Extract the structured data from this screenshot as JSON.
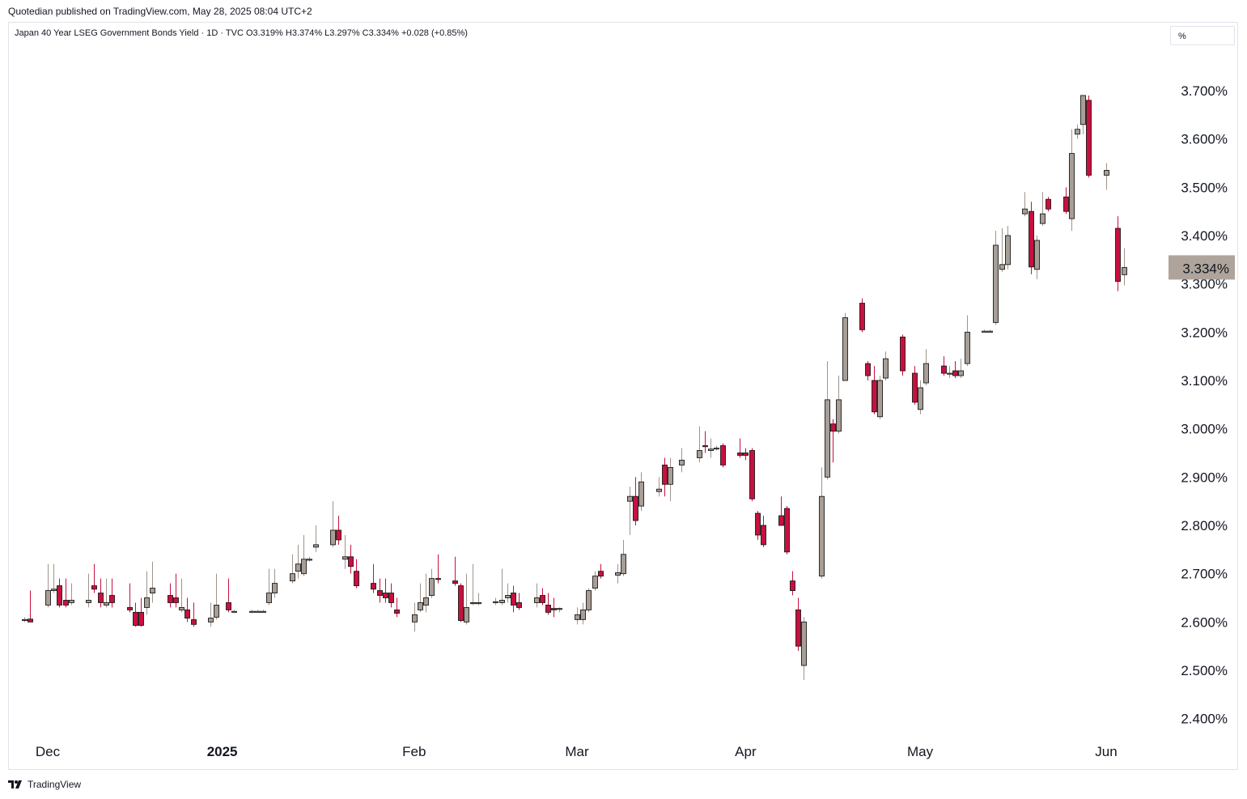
{
  "publish_line": "Quotedian published on TradingView.com, May 28, 2025 08:04 UTC+2",
  "legend_text": "Japan 40 Year LSEG Government Bonds Yield · 1D · TVC  O3.319%  H3.374%  L3.297%  C3.334%  +0.028 (+0.85%)",
  "scale_mode_label": "%",
  "footer": {
    "brand": "TradingView",
    "logo_icon": "tradingview-logo-icon"
  },
  "colors": {
    "up": "#a89e96",
    "down": "#c8103f",
    "wick_up": "#9e948c",
    "wick_down": "#c8103f",
    "price_tag": "#aea49b"
  },
  "chart_data": {
    "type": "candlestick",
    "title": "Japan 40 Year LSEG Government Bonds Yield",
    "interval": "1D",
    "source": "TVC",
    "ohlc_label": {
      "open": "3.319%",
      "high": "3.374%",
      "low": "3.297%",
      "close": "3.334%",
      "change": "+0.028 (+0.85%)"
    },
    "last_price_label": "3.334%",
    "last_price": 3.334,
    "ylim": [
      2.36,
      3.78
    ],
    "y_ticks": [
      2.4,
      2.5,
      2.6,
      2.7,
      2.8,
      2.9,
      3.0,
      3.1,
      3.2,
      3.3,
      3.4,
      3.5,
      3.6,
      3.7
    ],
    "y_tick_labels": [
      "2.400%",
      "2.500%",
      "2.600%",
      "2.700%",
      "2.800%",
      "2.900%",
      "3.000%",
      "3.100%",
      "3.200%",
      "3.300%",
      "3.400%",
      "3.500%",
      "3.600%",
      "3.700%"
    ],
    "x_tick_labels": [
      {
        "label": "Dec",
        "date": "2024-12-02",
        "bold": false
      },
      {
        "label": "2025",
        "date": "2025-01-01",
        "bold": true
      },
      {
        "label": "Feb",
        "date": "2025-02-03",
        "bold": false
      },
      {
        "label": "Mar",
        "date": "2025-03-03",
        "bold": false
      },
      {
        "label": "Apr",
        "date": "2025-04-01",
        "bold": false
      },
      {
        "label": "May",
        "date": "2025-05-01",
        "bold": false
      },
      {
        "label": "Jun",
        "date": "2025-06-02",
        "bold": false
      }
    ],
    "candles": [
      {
        "d": "2024-11-28",
        "o": 2.605,
        "h": 2.61,
        "l": 2.6,
        "c": 2.605
      },
      {
        "d": "2024-11-29",
        "o": 2.606,
        "h": 2.665,
        "l": 2.6,
        "c": 2.6
      },
      {
        "d": "2024-12-02",
        "o": 2.635,
        "h": 2.72,
        "l": 2.63,
        "c": 2.665
      },
      {
        "d": "2024-12-03",
        "o": 2.665,
        "h": 2.72,
        "l": 2.66,
        "c": 2.668
      },
      {
        "d": "2024-12-04",
        "o": 2.675,
        "h": 2.69,
        "l": 2.63,
        "c": 2.635
      },
      {
        "d": "2024-12-05",
        "o": 2.645,
        "h": 2.69,
        "l": 2.63,
        "c": 2.635
      },
      {
        "d": "2024-12-06",
        "o": 2.64,
        "h": 2.68,
        "l": 2.635,
        "c": 2.645
      },
      {
        "d": "2024-12-09",
        "o": 2.64,
        "h": 2.7,
        "l": 2.63,
        "c": 2.645
      },
      {
        "d": "2024-12-10",
        "o": 2.675,
        "h": 2.72,
        "l": 2.66,
        "c": 2.668
      },
      {
        "d": "2024-12-11",
        "o": 2.66,
        "h": 2.69,
        "l": 2.63,
        "c": 2.64
      },
      {
        "d": "2024-12-12",
        "o": 2.635,
        "h": 2.69,
        "l": 2.63,
        "c": 2.64
      },
      {
        "d": "2024-12-13",
        "o": 2.655,
        "h": 2.69,
        "l": 2.63,
        "c": 2.64
      },
      {
        "d": "2024-12-16",
        "o": 2.63,
        "h": 2.68,
        "l": 2.62,
        "c": 2.625
      },
      {
        "d": "2024-12-17",
        "o": 2.62,
        "h": 2.64,
        "l": 2.59,
        "c": 2.593
      },
      {
        "d": "2024-12-18",
        "o": 2.62,
        "h": 2.65,
        "l": 2.59,
        "c": 2.593
      },
      {
        "d": "2024-12-19",
        "o": 2.63,
        "h": 2.705,
        "l": 2.615,
        "c": 2.65
      },
      {
        "d": "2024-12-20",
        "o": 2.66,
        "h": 2.725,
        "l": 2.64,
        "c": 2.67
      },
      {
        "d": "2024-12-23",
        "o": 2.655,
        "h": 2.68,
        "l": 2.63,
        "c": 2.64
      },
      {
        "d": "2024-12-24",
        "o": 2.65,
        "h": 2.7,
        "l": 2.63,
        "c": 2.64
      },
      {
        "d": "2024-12-25",
        "o": 2.625,
        "h": 2.69,
        "l": 2.62,
        "c": 2.63
      },
      {
        "d": "2024-12-26",
        "o": 2.625,
        "h": 2.65,
        "l": 2.6,
        "c": 2.608
      },
      {
        "d": "2024-12-27",
        "o": 2.605,
        "h": 2.64,
        "l": 2.59,
        "c": 2.595
      },
      {
        "d": "2024-12-30",
        "o": 2.6,
        "h": 2.64,
        "l": 2.59,
        "c": 2.608
      },
      {
        "d": "2024-12-31",
        "o": 2.61,
        "h": 2.7,
        "l": 2.605,
        "c": 2.635
      },
      {
        "d": "2025-01-02",
        "o": 2.64,
        "h": 2.69,
        "l": 2.62,
        "c": 2.625
      },
      {
        "d": "2025-01-03",
        "o": 2.622,
        "h": 2.625,
        "l": 2.62,
        "c": 2.622
      },
      {
        "d": "2025-01-06",
        "o": 2.622,
        "h": 2.625,
        "l": 2.62,
        "c": 2.622
      },
      {
        "d": "2025-01-07",
        "o": 2.622,
        "h": 2.625,
        "l": 2.62,
        "c": 2.622
      },
      {
        "d": "2025-01-08",
        "o": 2.622,
        "h": 2.625,
        "l": 2.62,
        "c": 2.622
      },
      {
        "d": "2025-01-09",
        "o": 2.64,
        "h": 2.71,
        "l": 2.635,
        "c": 2.66
      },
      {
        "d": "2025-01-10",
        "o": 2.66,
        "h": 2.71,
        "l": 2.65,
        "c": 2.68
      },
      {
        "d": "2025-01-13",
        "o": 2.685,
        "h": 2.74,
        "l": 2.68,
        "c": 2.7
      },
      {
        "d": "2025-01-14",
        "o": 2.705,
        "h": 2.76,
        "l": 2.69,
        "c": 2.72
      },
      {
        "d": "2025-01-15",
        "o": 2.7,
        "h": 2.78,
        "l": 2.695,
        "c": 2.73
      },
      {
        "d": "2025-01-16",
        "o": 2.73,
        "h": 2.735,
        "l": 2.725,
        "c": 2.73
      },
      {
        "d": "2025-01-17",
        "o": 2.755,
        "h": 2.8,
        "l": 2.745,
        "c": 2.76
      },
      {
        "d": "2025-01-20",
        "o": 2.76,
        "h": 2.85,
        "l": 2.755,
        "c": 2.79
      },
      {
        "d": "2025-01-21",
        "o": 2.79,
        "h": 2.82,
        "l": 2.76,
        "c": 2.77
      },
      {
        "d": "2025-01-22",
        "o": 2.73,
        "h": 2.78,
        "l": 2.71,
        "c": 2.735
      },
      {
        "d": "2025-01-23",
        "o": 2.735,
        "h": 2.76,
        "l": 2.7,
        "c": 2.715
      },
      {
        "d": "2025-01-24",
        "o": 2.705,
        "h": 2.73,
        "l": 2.67,
        "c": 2.675
      },
      {
        "d": "2025-01-27",
        "o": 2.68,
        "h": 2.72,
        "l": 2.66,
        "c": 2.668
      },
      {
        "d": "2025-01-28",
        "o": 2.665,
        "h": 2.69,
        "l": 2.64,
        "c": 2.655
      },
      {
        "d": "2025-01-29",
        "o": 2.66,
        "h": 2.69,
        "l": 2.64,
        "c": 2.65
      },
      {
        "d": "2025-01-30",
        "o": 2.66,
        "h": 2.68,
        "l": 2.63,
        "c": 2.64
      },
      {
        "d": "2025-01-31",
        "o": 2.625,
        "h": 2.65,
        "l": 2.61,
        "c": 2.618
      },
      {
        "d": "2025-02-03",
        "o": 2.6,
        "h": 2.64,
        "l": 2.58,
        "c": 2.615
      },
      {
        "d": "2025-02-04",
        "o": 2.625,
        "h": 2.68,
        "l": 2.62,
        "c": 2.64
      },
      {
        "d": "2025-02-05",
        "o": 2.635,
        "h": 2.7,
        "l": 2.62,
        "c": 2.65
      },
      {
        "d": "2025-02-06",
        "o": 2.655,
        "h": 2.71,
        "l": 2.65,
        "c": 2.69
      },
      {
        "d": "2025-02-07",
        "o": 2.69,
        "h": 2.74,
        "l": 2.68,
        "c": 2.688
      },
      {
        "d": "2025-02-10",
        "o": 2.685,
        "h": 2.735,
        "l": 2.675,
        "c": 2.68
      },
      {
        "d": "2025-02-11",
        "o": 2.675,
        "h": 2.68,
        "l": 2.6,
        "c": 2.603
      },
      {
        "d": "2025-02-12",
        "o": 2.6,
        "h": 2.7,
        "l": 2.595,
        "c": 2.63
      },
      {
        "d": "2025-02-13",
        "o": 2.64,
        "h": 2.72,
        "l": 2.635,
        "c": 2.64
      },
      {
        "d": "2025-02-14",
        "o": 2.64,
        "h": 2.66,
        "l": 2.635,
        "c": 2.64
      },
      {
        "d": "2025-02-17",
        "o": 2.642,
        "h": 2.65,
        "l": 2.635,
        "c": 2.642
      },
      {
        "d": "2025-02-18",
        "o": 2.64,
        "h": 2.71,
        "l": 2.635,
        "c": 2.645
      },
      {
        "d": "2025-02-19",
        "o": 2.65,
        "h": 2.68,
        "l": 2.64,
        "c": 2.655
      },
      {
        "d": "2025-02-20",
        "o": 2.66,
        "h": 2.675,
        "l": 2.62,
        "c": 2.635
      },
      {
        "d": "2025-02-21",
        "o": 2.64,
        "h": 2.66,
        "l": 2.625,
        "c": 2.63
      },
      {
        "d": "2025-02-24",
        "o": 2.64,
        "h": 2.68,
        "l": 2.63,
        "c": 2.65
      },
      {
        "d": "2025-02-25",
        "o": 2.655,
        "h": 2.67,
        "l": 2.635,
        "c": 2.64
      },
      {
        "d": "2025-02-26",
        "o": 2.635,
        "h": 2.66,
        "l": 2.615,
        "c": 2.62
      },
      {
        "d": "2025-02-27",
        "o": 2.628,
        "h": 2.65,
        "l": 2.61,
        "c": 2.625
      },
      {
        "d": "2025-02-28",
        "o": 2.628,
        "h": 2.63,
        "l": 2.62,
        "c": 2.628
      },
      {
        "d": "2025-03-03",
        "o": 2.605,
        "h": 2.63,
        "l": 2.595,
        "c": 2.615
      },
      {
        "d": "2025-03-04",
        "o": 2.605,
        "h": 2.64,
        "l": 2.595,
        "c": 2.625
      },
      {
        "d": "2025-03-05",
        "o": 2.625,
        "h": 2.67,
        "l": 2.62,
        "c": 2.665
      },
      {
        "d": "2025-03-06",
        "o": 2.67,
        "h": 2.705,
        "l": 2.665,
        "c": 2.695
      },
      {
        "d": "2025-03-07",
        "o": 2.705,
        "h": 2.72,
        "l": 2.69,
        "c": 2.695
      },
      {
        "d": "2025-03-10",
        "o": 2.697,
        "h": 2.72,
        "l": 2.68,
        "c": 2.702
      },
      {
        "d": "2025-03-11",
        "o": 2.7,
        "h": 2.77,
        "l": 2.695,
        "c": 2.74
      },
      {
        "d": "2025-03-12",
        "o": 2.85,
        "h": 2.88,
        "l": 2.78,
        "c": 2.86
      },
      {
        "d": "2025-03-13",
        "o": 2.86,
        "h": 2.9,
        "l": 2.8,
        "c": 2.81
      },
      {
        "d": "2025-03-14",
        "o": 2.84,
        "h": 2.91,
        "l": 2.83,
        "c": 2.89
      },
      {
        "d": "2025-03-17",
        "o": 2.87,
        "h": 2.9,
        "l": 2.86,
        "c": 2.875
      },
      {
        "d": "2025-03-18",
        "o": 2.925,
        "h": 2.94,
        "l": 2.86,
        "c": 2.885
      },
      {
        "d": "2025-03-19",
        "o": 2.885,
        "h": 2.94,
        "l": 2.85,
        "c": 2.92
      },
      {
        "d": "2025-03-21",
        "o": 2.925,
        "h": 2.96,
        "l": 2.91,
        "c": 2.935
      },
      {
        "d": "2025-03-24",
        "o": 2.94,
        "h": 3.005,
        "l": 2.93,
        "c": 2.955
      },
      {
        "d": "2025-03-25",
        "o": 2.965,
        "h": 2.995,
        "l": 2.95,
        "c": 2.963
      },
      {
        "d": "2025-03-26",
        "o": 2.955,
        "h": 2.98,
        "l": 2.94,
        "c": 2.958
      },
      {
        "d": "2025-03-27",
        "o": 2.96,
        "h": 2.965,
        "l": 2.955,
        "c": 2.96
      },
      {
        "d": "2025-03-28",
        "o": 2.965,
        "h": 2.97,
        "l": 2.92,
        "c": 2.925
      },
      {
        "d": "2025-03-31",
        "o": 2.95,
        "h": 2.98,
        "l": 2.94,
        "c": 2.945
      },
      {
        "d": "2025-04-01",
        "o": 2.95,
        "h": 2.96,
        "l": 2.935,
        "c": 2.945
      },
      {
        "d": "2025-04-02",
        "o": 2.955,
        "h": 2.96,
        "l": 2.85,
        "c": 2.855
      },
      {
        "d": "2025-04-03",
        "o": 2.825,
        "h": 2.83,
        "l": 2.77,
        "c": 2.78
      },
      {
        "d": "2025-04-04",
        "o": 2.8,
        "h": 2.82,
        "l": 2.755,
        "c": 2.76
      },
      {
        "d": "2025-04-07",
        "o": 2.82,
        "h": 2.86,
        "l": 2.8,
        "c": 2.8
      },
      {
        "d": "2025-04-08",
        "o": 2.835,
        "h": 2.84,
        "l": 2.74,
        "c": 2.745
      },
      {
        "d": "2025-04-09",
        "o": 2.685,
        "h": 2.705,
        "l": 2.655,
        "c": 2.665
      },
      {
        "d": "2025-04-10",
        "o": 2.625,
        "h": 2.65,
        "l": 2.54,
        "c": 2.55
      },
      {
        "d": "2025-04-11",
        "o": 2.51,
        "h": 2.61,
        "l": 2.48,
        "c": 2.6
      },
      {
        "d": "2025-04-14",
        "o": 2.695,
        "h": 2.92,
        "l": 2.69,
        "c": 2.86
      },
      {
        "d": "2025-04-15",
        "o": 2.9,
        "h": 3.14,
        "l": 2.895,
        "c": 3.06
      },
      {
        "d": "2025-04-16",
        "o": 3.01,
        "h": 3.02,
        "l": 2.93,
        "c": 2.995
      },
      {
        "d": "2025-04-17",
        "o": 2.995,
        "h": 3.11,
        "l": 2.99,
        "c": 3.06
      },
      {
        "d": "2025-04-18",
        "o": 3.1,
        "h": 3.24,
        "l": 3.1,
        "c": 3.23
      },
      {
        "d": "2025-04-21",
        "o": 3.26,
        "h": 3.27,
        "l": 3.2,
        "c": 3.205
      },
      {
        "d": "2025-04-22",
        "o": 3.135,
        "h": 3.14,
        "l": 3.1,
        "c": 3.11
      },
      {
        "d": "2025-04-23",
        "o": 3.1,
        "h": 3.13,
        "l": 3.03,
        "c": 3.035
      },
      {
        "d": "2025-04-24",
        "o": 3.025,
        "h": 3.11,
        "l": 3.02,
        "c": 3.1
      },
      {
        "d": "2025-04-25",
        "o": 3.105,
        "h": 3.16,
        "l": 3.1,
        "c": 3.145
      },
      {
        "d": "2025-04-28",
        "o": 3.19,
        "h": 3.195,
        "l": 3.11,
        "c": 3.12
      },
      {
        "d": "2025-04-30",
        "o": 3.115,
        "h": 3.13,
        "l": 3.05,
        "c": 3.055
      },
      {
        "d": "2025-05-01",
        "o": 3.04,
        "h": 3.1,
        "l": 3.03,
        "c": 3.085
      },
      {
        "d": "2025-05-02",
        "o": 3.095,
        "h": 3.165,
        "l": 3.09,
        "c": 3.135
      },
      {
        "d": "2025-05-05",
        "o": 3.13,
        "h": 3.15,
        "l": 3.11,
        "c": 3.115
      },
      {
        "d": "2025-05-06",
        "o": 3.115,
        "h": 3.13,
        "l": 3.105,
        "c": 3.115
      },
      {
        "d": "2025-05-07",
        "o": 3.12,
        "h": 3.14,
        "l": 3.105,
        "c": 3.11
      },
      {
        "d": "2025-05-08",
        "o": 3.11,
        "h": 3.145,
        "l": 3.105,
        "c": 3.12
      },
      {
        "d": "2025-05-09",
        "o": 3.135,
        "h": 3.235,
        "l": 3.13,
        "c": 3.2
      },
      {
        "d": "2025-05-12",
        "o": 3.202,
        "h": 3.205,
        "l": 3.2,
        "c": 3.202
      },
      {
        "d": "2025-05-13",
        "o": 3.202,
        "h": 3.205,
        "l": 3.2,
        "c": 3.202
      },
      {
        "d": "2025-05-14",
        "o": 3.22,
        "h": 3.41,
        "l": 3.215,
        "c": 3.38
      },
      {
        "d": "2025-05-15",
        "o": 3.33,
        "h": 3.415,
        "l": 3.325,
        "c": 3.34
      },
      {
        "d": "2025-05-16",
        "o": 3.34,
        "h": 3.42,
        "l": 3.33,
        "c": 3.4
      },
      {
        "d": "2025-05-19",
        "o": 3.445,
        "h": 3.49,
        "l": 3.44,
        "c": 3.455
      },
      {
        "d": "2025-05-20",
        "o": 3.45,
        "h": 3.47,
        "l": 3.32,
        "c": 3.335
      },
      {
        "d": "2025-05-21",
        "o": 3.33,
        "h": 3.4,
        "l": 3.31,
        "c": 3.39
      },
      {
        "d": "2025-05-22",
        "o": 3.425,
        "h": 3.49,
        "l": 3.42,
        "c": 3.445
      },
      {
        "d": "2025-05-23",
        "o": 3.475,
        "h": 3.48,
        "l": 3.45,
        "c": 3.455
      },
      {
        "d": "2025-05-26",
        "o": 3.48,
        "h": 3.5,
        "l": 3.445,
        "c": 3.45
      },
      {
        "d": "2025-05-27",
        "o": 3.435,
        "h": 3.62,
        "l": 3.41,
        "c": 3.57
      },
      {
        "d": "2025-05-28",
        "o": 3.61,
        "h": 3.63,
        "l": 3.6,
        "c": 3.62
      },
      {
        "d": "2025-05-29",
        "o": 3.63,
        "h": 3.69,
        "l": 3.61,
        "c": 3.69
      },
      {
        "d": "2025-05-30",
        "o": 3.68,
        "h": 3.69,
        "l": 3.52,
        "c": 3.525
      },
      {
        "d": "2025-06-02",
        "o": 3.525,
        "h": 3.55,
        "l": 3.495,
        "c": 3.535
      },
      {
        "d": "2025-06-04",
        "o": 3.415,
        "h": 3.44,
        "l": 3.285,
        "c": 3.305
      },
      {
        "d": "2025-06-05",
        "o": 3.319,
        "h": 3.374,
        "l": 3.297,
        "c": 3.334
      }
    ]
  }
}
